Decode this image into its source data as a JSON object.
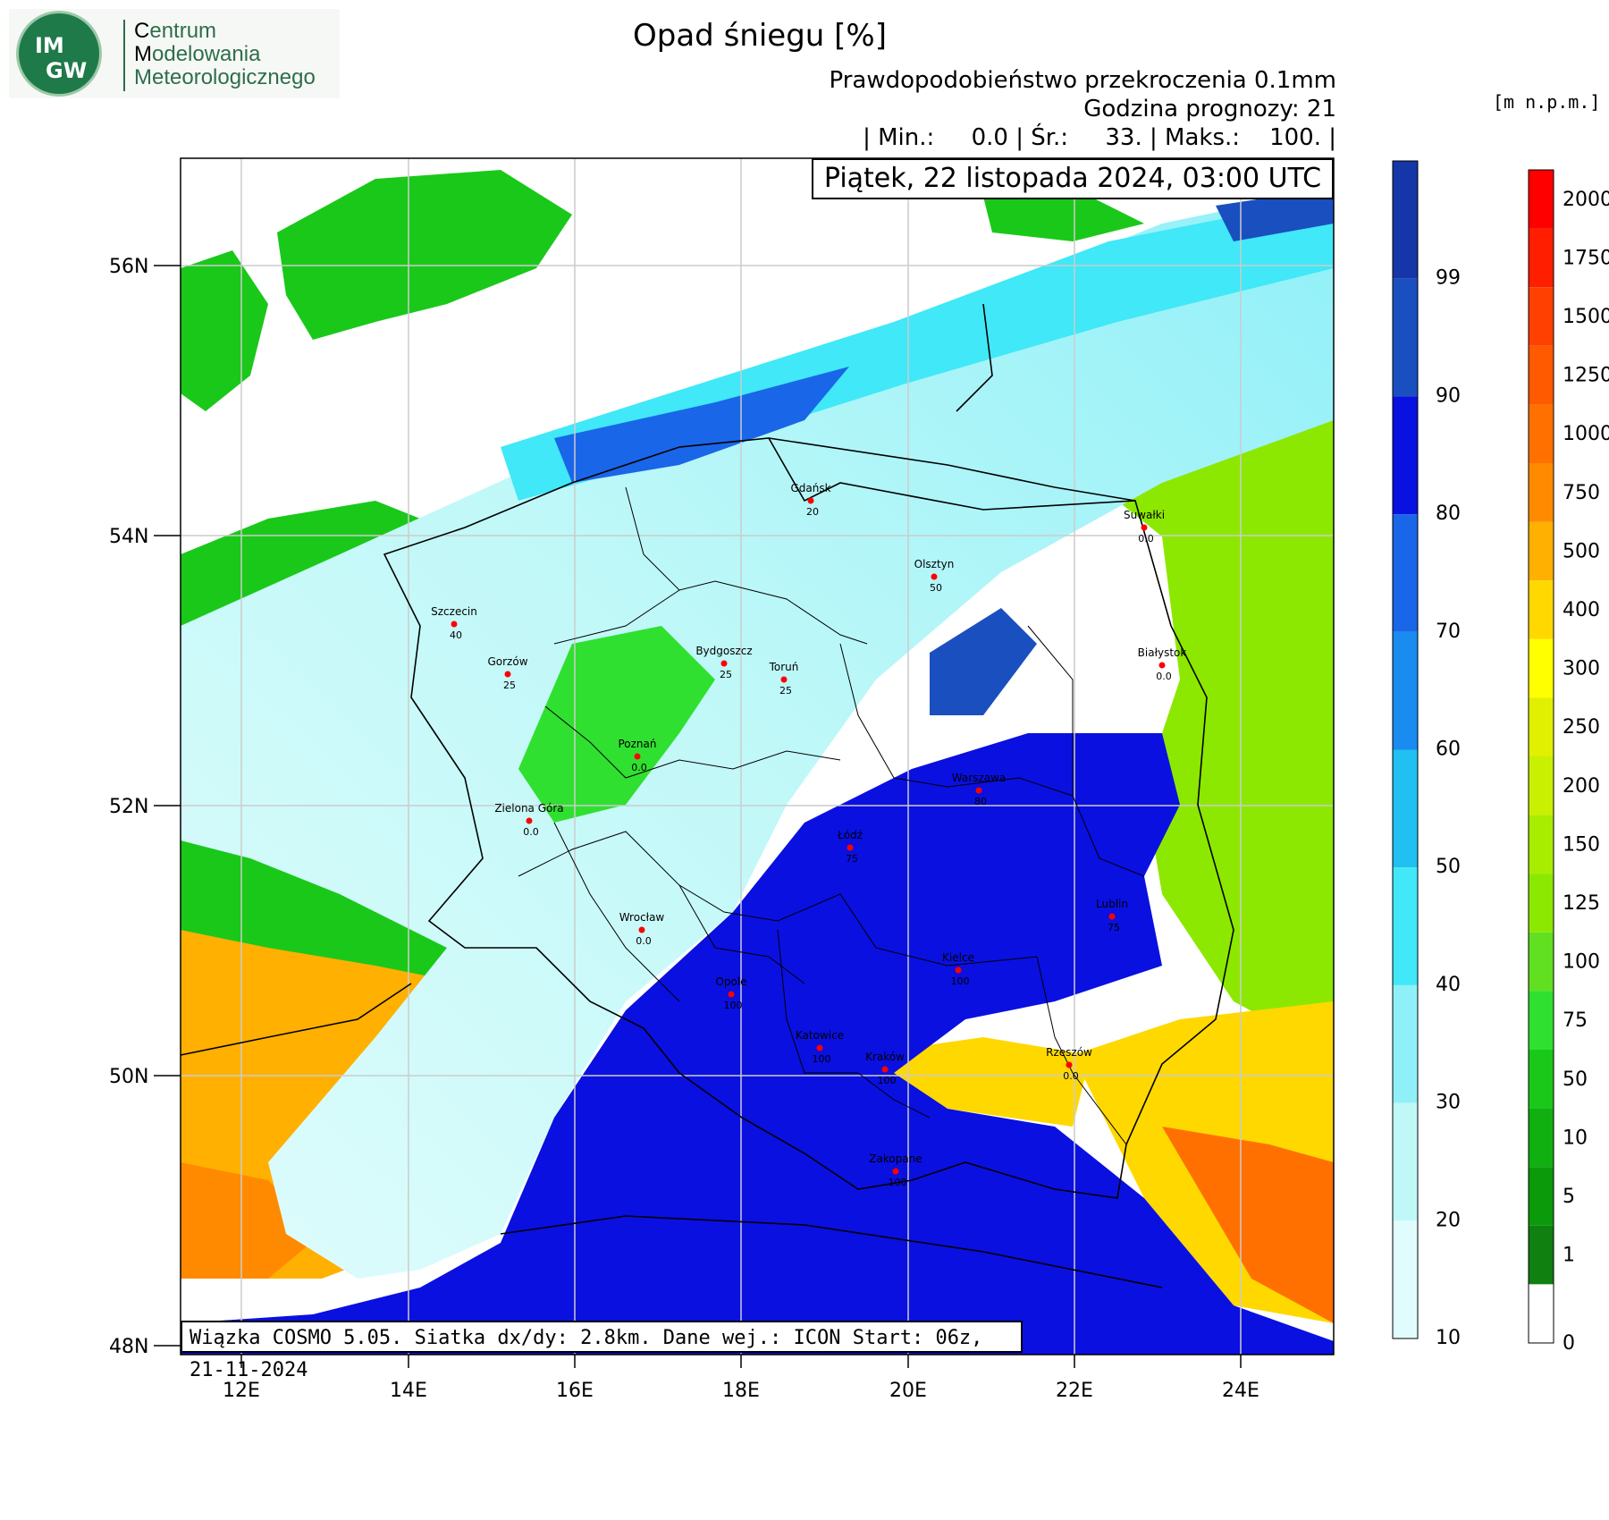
{
  "logo": {
    "badge_top": "IM",
    "badge_bottom": "GW",
    "line1_first": "C",
    "line1_rest": "entrum",
    "line2_first": "M",
    "line2_rest": "odelowania",
    "line3_first": "M",
    "line3_rest": "eteorologicznego"
  },
  "title": "Opad śniegu [%]",
  "subtitle1": "Prawdopodobieństwo przekroczenia 0.1mm",
  "subtitle2": "Godzina prognozy: 21",
  "stats": "| Min.:     0.0 | Śr.:     33. | Maks.:    100. |",
  "date": "Piątek, 22 listopada 2024, 03:00 UTC",
  "footer": "Wiązka COSMO 5.05. Siatka dx/dy: 2.8km. Dane wej.: ICON Start: 06z, 21-11-2024",
  "units": "[m n.p.m.]",
  "lat_labels": [
    "56N",
    "54N",
    "52N",
    "50N",
    "48N"
  ],
  "lon_labels": [
    "12E",
    "14E",
    "16E",
    "18E",
    "20E",
    "22E",
    "24E"
  ],
  "prob_scale": {
    "labels": [
      "99",
      "90",
      "80",
      "70",
      "60",
      "50",
      "40",
      "30",
      "20",
      "10"
    ],
    "colors": [
      "#1436a8",
      "#1a4fc0",
      "#0a10e0",
      "#1a66e8",
      "#1a8cf0",
      "#20c0f0",
      "#40e8f8",
      "#90f0f8",
      "#c0f8f8",
      "#e0fcfc"
    ]
  },
  "height_scale": {
    "labels": [
      "2000",
      "1750",
      "1500",
      "1250",
      "1000",
      "750",
      "500",
      "400",
      "300",
      "250",
      "200",
      "150",
      "125",
      "100",
      "75",
      "50",
      "10",
      "5",
      "1",
      "0"
    ],
    "colors": [
      "#ff0000",
      "#ff1e00",
      "#ff4000",
      "#ff5a00",
      "#ff7000",
      "#ff8a00",
      "#ffb000",
      "#ffd800",
      "#ffff00",
      "#e0f000",
      "#c8f000",
      "#a8ec00",
      "#8ce800",
      "#60e020",
      "#30e030",
      "#1ac81a",
      "#10b010",
      "#0a9a0a",
      "#108010",
      "#ffffff"
    ]
  },
  "cities": [
    {
      "name": "Gdańsk",
      "value": "20"
    },
    {
      "name": "Suwałki",
      "value": "0.0"
    },
    {
      "name": "Olsztyn",
      "value": "50"
    },
    {
      "name": "Szczecin",
      "value": "40"
    },
    {
      "name": "Bydgoszcz",
      "value": "25"
    },
    {
      "name": "Toruń",
      "value": "25"
    },
    {
      "name": "Białystok",
      "value": "0.0"
    },
    {
      "name": "Gorzów",
      "value": "25"
    },
    {
      "name": "Poznań",
      "value": "0.0"
    },
    {
      "name": "Warszawa",
      "value": "80"
    },
    {
      "name": "Zielona Góra",
      "value": "0.0"
    },
    {
      "name": "Łódź",
      "value": "75"
    },
    {
      "name": "Lublin",
      "value": "75"
    },
    {
      "name": "Wrocław",
      "value": "0.0"
    },
    {
      "name": "Kielce",
      "value": "100"
    },
    {
      "name": "Opole",
      "value": "100"
    },
    {
      "name": "Katowice",
      "value": "100"
    },
    {
      "name": "Kraków",
      "value": "100"
    },
    {
      "name": "Rzeszów",
      "value": "0.0"
    },
    {
      "name": "Zakopane",
      "value": "100"
    }
  ]
}
